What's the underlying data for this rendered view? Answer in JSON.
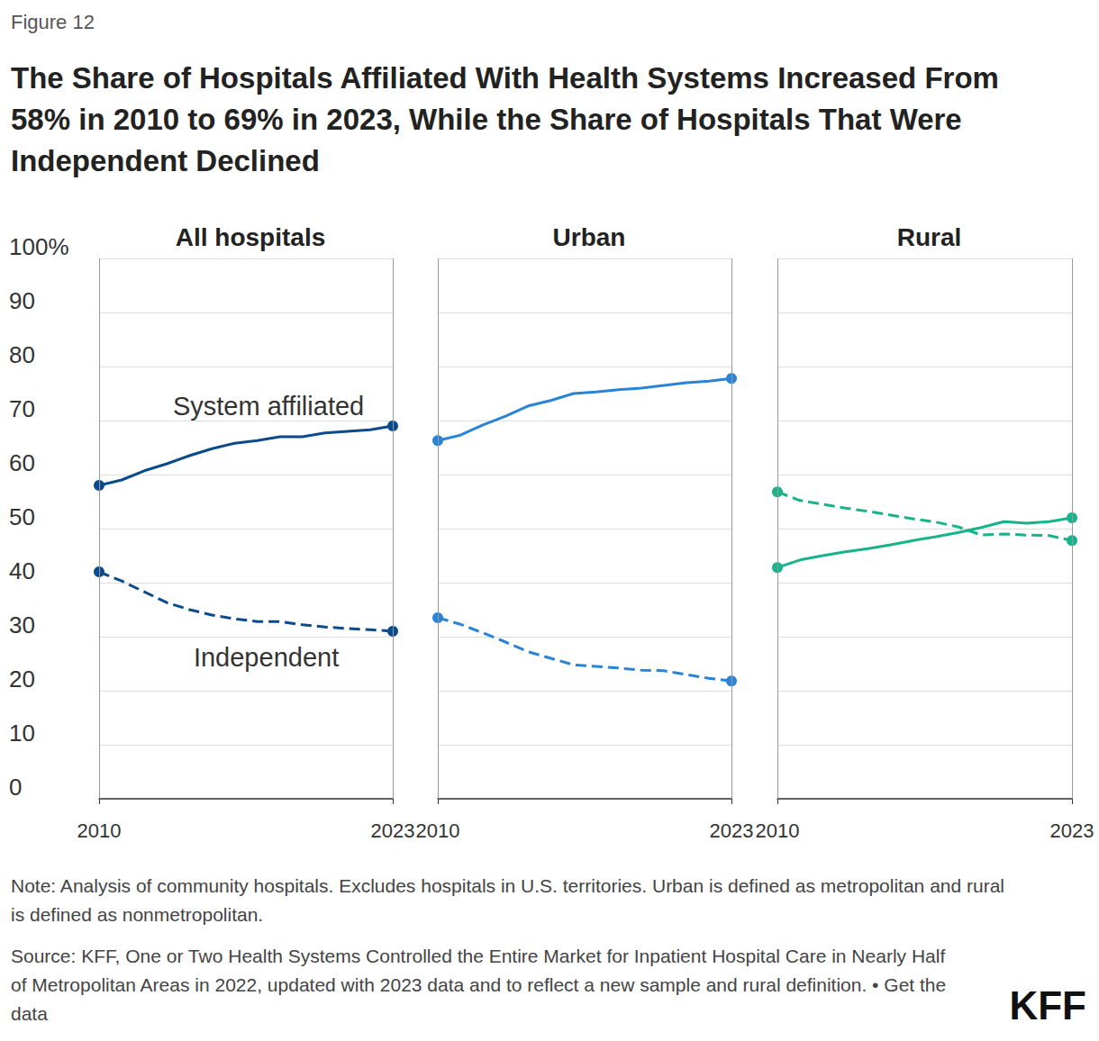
{
  "figure_label": "Figure 12",
  "title": "The Share of Hospitals Affiliated With Health Systems Increased From 58% in 2010 to 69% in 2023, While the Share of Hospitals That Were Independent Declined",
  "note": "Note: Analysis of community hospitals. Excludes hospitals in U.S. territories. Urban is defined as metropolitan and rural is defined as nonmetropolitan.",
  "source": "Source: KFF, One or Two Health Systems Controlled the Entire Market for Inpatient Hospital Care in Nearly Half of Metropolitan Areas in 2022, updated with 2023 data and to reflect a new sample and rural definition. • Get the data",
  "brand": "KFF",
  "chart_data": [
    {
      "type": "line",
      "title": "All hospitals",
      "x": [
        2010,
        2011,
        2012,
        2013,
        2014,
        2015,
        2016,
        2017,
        2018,
        2019,
        2020,
        2021,
        2022,
        2023
      ],
      "series": [
        {
          "color": "#0b4a8b",
          "line_style": "solid",
          "marker": "endpoints",
          "values": [
            58,
            59,
            60.7,
            62,
            63.5,
            64.8,
            65.8,
            66.3,
            67,
            67,
            67.7,
            68,
            68.3,
            69
          ]
        },
        {
          "color": "#0b4a8b",
          "line_style": "dashed",
          "marker": "endpoints",
          "values": [
            42,
            40.3,
            38.3,
            36.3,
            35,
            34,
            33.3,
            32.8,
            32.8,
            32.2,
            31.8,
            31.5,
            31.3,
            31
          ]
        }
      ],
      "annotations": [
        {
          "text": "System affiliated",
          "x": 2017.5,
          "y": 72.7
        },
        {
          "text": "Independent",
          "x": 2017.4,
          "y": 26.2
        }
      ],
      "xlim": [
        2010,
        2023
      ],
      "xticks": [
        2010,
        2023
      ],
      "ylim": [
        0,
        100
      ],
      "yticks": [
        0,
        10,
        20,
        30,
        40,
        50,
        60,
        70,
        80,
        90,
        {
          "value": 100,
          "label": "100%"
        }
      ],
      "grid": true
    },
    {
      "type": "line",
      "title": "Urban",
      "x": [
        2010,
        2011,
        2012,
        2013,
        2014,
        2015,
        2016,
        2017,
        2018,
        2019,
        2020,
        2021,
        2022,
        2023
      ],
      "series": [
        {
          "color": "#2a84d6",
          "line_style": "solid",
          "marker": "endpoints",
          "values": [
            66.3,
            67.3,
            69.2,
            70.8,
            72.7,
            73.7,
            75,
            75.3,
            75.7,
            76,
            76.5,
            77,
            77.3,
            77.8
          ]
        },
        {
          "color": "#2a84d6",
          "line_style": "dashed",
          "marker": "endpoints",
          "values": [
            33.5,
            32.3,
            30.7,
            29,
            27.2,
            26,
            24.8,
            24.5,
            24.2,
            23.8,
            23.7,
            23,
            22.3,
            21.8
          ]
        }
      ],
      "xlim": [
        2010,
        2023
      ],
      "xticks": [
        2010,
        2023
      ],
      "ylim": [
        0,
        100
      ],
      "yticks": [
        0,
        10,
        20,
        30,
        40,
        50,
        60,
        70,
        80,
        90,
        {
          "value": 100,
          "label": "100%"
        }
      ],
      "grid": true,
      "tick_labels": "x"
    },
    {
      "type": "line",
      "title": "Rural",
      "x": [
        2010,
        2011,
        2012,
        2013,
        2014,
        2015,
        2016,
        2017,
        2018,
        2019,
        2020,
        2021,
        2022,
        2023
      ],
      "series": [
        {
          "color": "#17b38a",
          "line_style": "solid",
          "marker": "endpoints",
          "values": [
            42.8,
            44.2,
            45,
            45.7,
            46.3,
            47,
            47.8,
            48.5,
            49.3,
            50.2,
            51.3,
            51,
            51.3,
            52
          ]
        },
        {
          "color": "#17b38a",
          "line_style": "dashed",
          "marker": "endpoints",
          "values": [
            56.8,
            55.2,
            54.5,
            53.8,
            53.2,
            52.5,
            51.8,
            51.2,
            50.3,
            48.8,
            49,
            48.8,
            48.7,
            47.8
          ]
        }
      ],
      "xlim": [
        2010,
        2023
      ],
      "xticks": [
        2010,
        2023
      ],
      "ylim": [
        0,
        100
      ],
      "yticks": [
        0,
        10,
        20,
        30,
        40,
        50,
        60,
        70,
        80,
        90,
        {
          "value": 100,
          "label": "100%"
        }
      ],
      "grid": true,
      "tick_labels": "x"
    }
  ]
}
